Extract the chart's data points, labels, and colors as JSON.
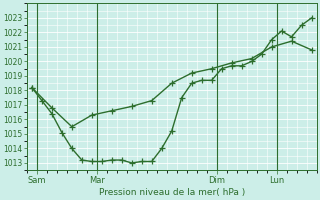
{
  "xlabel": "Pression niveau de la mer( hPa )",
  "background_color": "#cceee8",
  "line_color": "#2d6e2d",
  "grid_color": "#ffffff",
  "tick_label_color": "#2d6e2d",
  "ylim": [
    1012.5,
    1023.8
  ],
  "xlim": [
    -0.5,
    28.5
  ],
  "xtick_positions": [
    0.5,
    6.5,
    18.5,
    24.5
  ],
  "xtick_labels": [
    "Sam",
    "Mar",
    "Dim",
    "Lun"
  ],
  "vline_positions": [
    0.5,
    6.5,
    18.5,
    24.5
  ],
  "series1_x": [
    0,
    1,
    2,
    3,
    4,
    5,
    6,
    7,
    8,
    9,
    10,
    11,
    12,
    13,
    14,
    15,
    16,
    17,
    18,
    19,
    20,
    21,
    22,
    23,
    24,
    25,
    26,
    27,
    28
  ],
  "series1_y": [
    1018.2,
    1017.3,
    1016.4,
    1015.1,
    1014.0,
    1013.2,
    1013.1,
    1013.1,
    1013.2,
    1013.2,
    1013.0,
    1013.1,
    1013.1,
    1014.0,
    1015.2,
    1017.5,
    1018.5,
    1018.7,
    1018.7,
    1019.5,
    1019.7,
    1019.7,
    1020.0,
    1020.5,
    1021.5,
    1022.1,
    1021.7,
    1022.5,
    1023.0
  ],
  "series2_x": [
    0,
    2,
    4,
    6,
    8,
    10,
    12,
    14,
    16,
    18,
    20,
    22,
    24,
    26,
    28
  ],
  "series2_y": [
    1018.2,
    1016.8,
    1015.5,
    1016.3,
    1016.6,
    1016.9,
    1017.3,
    1018.5,
    1019.2,
    1019.5,
    1019.9,
    1020.2,
    1021.0,
    1021.4,
    1020.8
  ],
  "ytick_values": [
    1013,
    1014,
    1015,
    1016,
    1017,
    1018,
    1019,
    1020,
    1021,
    1022,
    1023
  ],
  "marker_size": 4,
  "linewidth": 1.0
}
